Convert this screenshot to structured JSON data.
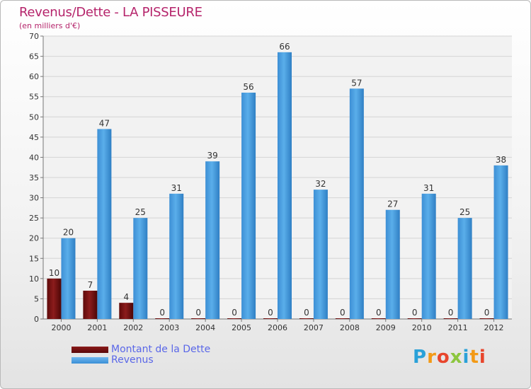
{
  "chart_data": {
    "type": "bar",
    "title": "Revenus/Dette - LA PISSEURE",
    "subtitle": "(en milliers d'€)",
    "categories": [
      "2000",
      "2001",
      "2002",
      "2003",
      "2004",
      "2005",
      "2006",
      "2007",
      "2008",
      "2009",
      "2010",
      "2011",
      "2012"
    ],
    "series": [
      {
        "name": "Montant de la Dette",
        "color": "#6b0d0d",
        "values": [
          10,
          7,
          4,
          0,
          0,
          0,
          0,
          0,
          0,
          0,
          0,
          0,
          0
        ]
      },
      {
        "name": "Revenus",
        "color": "#4aa3e6",
        "values": [
          20,
          47,
          25,
          31,
          39,
          56,
          66,
          32,
          57,
          27,
          31,
          25,
          38
        ]
      }
    ],
    "ylim": [
      0,
      70
    ],
    "yticks": [
      0,
      5,
      10,
      15,
      20,
      25,
      30,
      35,
      40,
      45,
      50,
      55,
      60,
      65,
      70
    ],
    "grid": true,
    "legend": "bottom-left"
  },
  "legend": {
    "dette_label": "Montant de la Dette",
    "revenus_label": "Revenus"
  },
  "logo": {
    "text": "Proxiti"
  }
}
